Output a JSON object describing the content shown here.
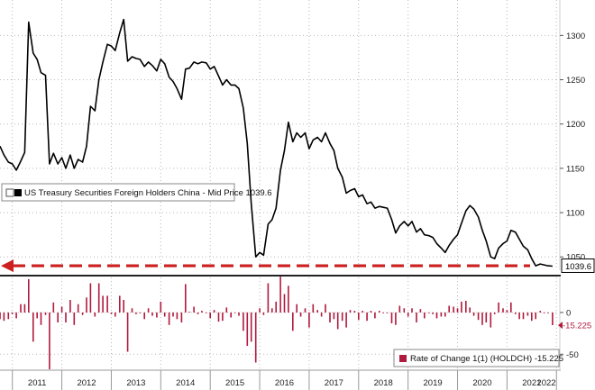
{
  "chart_data": [
    {
      "type": "line",
      "legend": "US Treasury Securities Foreign Holders China - Mid Price",
      "last_value_label": "1039.6",
      "ylim": [
        1035,
        1340
      ],
      "yticks": [
        "1050",
        "1100",
        "1150",
        "1200",
        "1250",
        "1300"
      ],
      "ytick_values": [
        1050,
        1100,
        1150,
        1200,
        1250,
        1300
      ],
      "grid": true,
      "legend_position": "middle-left",
      "line_color": "#000000",
      "reference_line": {
        "y": 1040,
        "style": "dashed-arrow",
        "color": "#cc1f1f"
      },
      "series": [
        {
          "x": [
            2010.75,
            2010.83,
            2010.92,
            2011.0,
            2011.08,
            2011.17,
            2011.25,
            2011.33,
            2011.42,
            2011.5,
            2011.58,
            2011.67,
            2011.75,
            2011.83,
            2011.92,
            2012.0,
            2012.08,
            2012.17,
            2012.25,
            2012.33,
            2012.42,
            2012.5,
            2012.58,
            2012.67,
            2012.75,
            2012.83,
            2012.92,
            2013.0,
            2013.08,
            2013.17,
            2013.25,
            2013.33,
            2013.42,
            2013.5,
            2013.58,
            2013.67,
            2013.75,
            2013.83,
            2013.92,
            2014.0,
            2014.08,
            2014.17,
            2014.25,
            2014.33,
            2014.42,
            2014.5,
            2014.58,
            2014.67,
            2014.75,
            2014.83,
            2014.92,
            2015.0,
            2015.08,
            2015.17,
            2015.25,
            2015.33,
            2015.42,
            2015.5,
            2015.58,
            2015.67,
            2015.75,
            2015.83,
            2015.92,
            2016.0,
            2016.08,
            2016.17,
            2016.25,
            2016.33,
            2016.42,
            2016.5,
            2016.58,
            2016.67,
            2016.75,
            2016.83,
            2016.92,
            2017.0,
            2017.08,
            2017.17,
            2017.25,
            2017.33,
            2017.42,
            2017.5,
            2017.58,
            2017.67,
            2017.75,
            2017.83,
            2017.92,
            2018.0,
            2018.08,
            2018.17,
            2018.25,
            2018.33,
            2018.42,
            2018.5,
            2018.58,
            2018.67,
            2018.75,
            2018.83,
            2018.92,
            2019.0,
            2019.08,
            2019.17,
            2019.25,
            2019.33,
            2019.42,
            2019.5,
            2019.58,
            2019.67,
            2019.75,
            2019.83,
            2019.92,
            2020.0,
            2020.08,
            2020.17,
            2020.25,
            2020.33,
            2020.42,
            2020.5,
            2020.58,
            2020.67,
            2020.75,
            2020.83,
            2020.92,
            2021.0,
            2021.08,
            2021.17,
            2021.25,
            2021.33,
            2021.42,
            2021.5,
            2021.58,
            2021.67,
            2021.75,
            2021.83,
            2021.92
          ],
          "y": [
            1175,
            1165,
            1157,
            1155,
            1148,
            1158,
            1168,
            1315,
            1280,
            1273,
            1258,
            1255,
            1155,
            1167,
            1155,
            1162,
            1150,
            1165,
            1150,
            1160,
            1157,
            1175,
            1220,
            1215,
            1250,
            1270,
            1290,
            1288,
            1283,
            1303,
            1318,
            1271,
            1276,
            1274,
            1273,
            1265,
            1270,
            1266,
            1260,
            1273,
            1268,
            1253,
            1248,
            1240,
            1228,
            1262,
            1263,
            1270,
            1268,
            1270,
            1269,
            1262,
            1265,
            1254,
            1244,
            1250,
            1244,
            1244,
            1240,
            1218,
            1178,
            1110,
            1050,
            1055,
            1052,
            1087,
            1092,
            1105,
            1148,
            1170,
            1202,
            1180,
            1190,
            1185,
            1190,
            1172,
            1182,
            1185,
            1180,
            1190,
            1178,
            1170,
            1150,
            1140,
            1122,
            1125,
            1127,
            1118,
            1120,
            1110,
            1112,
            1105,
            1107,
            1106,
            1105,
            1092,
            1077,
            1085,
            1090,
            1085,
            1090,
            1078,
            1082,
            1075,
            1074,
            1072,
            1065,
            1060,
            1055,
            1063,
            1070,
            1075,
            1088,
            1102,
            1108,
            1104,
            1095,
            1080,
            1068,
            1050,
            1048,
            1060,
            1065,
            1068,
            1080,
            1078,
            1070,
            1062,
            1058,
            1048,
            1040,
            1042,
            1041,
            1040,
            1039.6
          ]
        }
      ]
    },
    {
      "type": "bar",
      "legend": "Rate of Change 1(1) (HOLDCH)",
      "legend_value": "-15.225",
      "last_value_label": "-15.225",
      "ylim": [
        -68,
        42
      ],
      "yticks": [
        "-50",
        "0"
      ],
      "ytick_values": [
        -50,
        0
      ],
      "grid": true,
      "legend_position": "bottom-right",
      "bar_color": "#b01a3c",
      "x_labels": [
        "2011",
        "2012",
        "2013",
        "2014",
        "2015",
        "2016",
        "2017",
        "2018",
        "2019",
        "2020",
        "2021",
        "2022"
      ],
      "x_label_positions": [
        2011,
        2012,
        2013,
        2014,
        2015,
        2016,
        2017,
        2018,
        2019,
        2020,
        2021,
        2022
      ],
      "x": [
        2010.75,
        2010.83,
        2010.92,
        2011.0,
        2011.08,
        2011.17,
        2011.25,
        2011.33,
        2011.42,
        2011.5,
        2011.58,
        2011.67,
        2011.75,
        2011.83,
        2011.92,
        2012.0,
        2012.08,
        2012.17,
        2012.25,
        2012.33,
        2012.42,
        2012.5,
        2012.58,
        2012.67,
        2012.75,
        2012.83,
        2012.92,
        2013.0,
        2013.08,
        2013.17,
        2013.25,
        2013.33,
        2013.42,
        2013.5,
        2013.58,
        2013.67,
        2013.75,
        2013.83,
        2013.92,
        2014.0,
        2014.08,
        2014.17,
        2014.25,
        2014.33,
        2014.42,
        2014.5,
        2014.58,
        2014.67,
        2014.75,
        2014.83,
        2014.92,
        2015.0,
        2015.08,
        2015.17,
        2015.25,
        2015.33,
        2015.42,
        2015.5,
        2015.58,
        2015.67,
        2015.75,
        2015.83,
        2015.92,
        2016.0,
        2016.08,
        2016.17,
        2016.25,
        2016.33,
        2016.42,
        2016.5,
        2016.58,
        2016.67,
        2016.75,
        2016.83,
        2016.92,
        2017.0,
        2017.08,
        2017.17,
        2017.25,
        2017.33,
        2017.42,
        2017.5,
        2017.58,
        2017.67,
        2017.75,
        2017.83,
        2017.92,
        2018.0,
        2018.08,
        2018.17,
        2018.25,
        2018.33,
        2018.42,
        2018.5,
        2018.58,
        2018.67,
        2018.75,
        2018.83,
        2018.92,
        2019.0,
        2019.08,
        2019.17,
        2019.25,
        2019.33,
        2019.42,
        2019.5,
        2019.58,
        2019.67,
        2019.75,
        2019.83,
        2019.92,
        2020.0,
        2020.08,
        2020.17,
        2020.25,
        2020.33,
        2020.42,
        2020.5,
        2020.58,
        2020.67,
        2020.75,
        2020.83,
        2020.92,
        2021.0,
        2021.08,
        2021.17,
        2021.25,
        2021.33,
        2021.42,
        2021.5,
        2021.58,
        2021.67,
        2021.75,
        2021.83,
        2021.92
      ],
      "values": [
        -8,
        -10,
        -8,
        -2,
        -7,
        10,
        10,
        40,
        -35,
        -7,
        -15,
        -3,
        -68,
        12,
        -12,
        7,
        -12,
        15,
        -15,
        10,
        -3,
        18,
        35,
        -5,
        35,
        20,
        20,
        -2,
        -5,
        20,
        15,
        -47,
        5,
        -2,
        -1,
        -8,
        5,
        -4,
        -6,
        13,
        -5,
        -15,
        -5,
        -8,
        -12,
        34,
        1,
        7,
        -2,
        2,
        -1,
        -7,
        3,
        -11,
        -10,
        6,
        -6,
        0,
        -4,
        -22,
        -40,
        -35,
        -60,
        5,
        -3,
        35,
        5,
        13,
        43,
        22,
        32,
        -22,
        10,
        -5,
        5,
        -18,
        10,
        3,
        -5,
        10,
        -12,
        -8,
        -20,
        -10,
        -18,
        3,
        2,
        -9,
        2,
        -10,
        2,
        -7,
        2,
        -1,
        -1,
        -13,
        -15,
        8,
        5,
        -5,
        5,
        -12,
        4,
        -7,
        -1,
        -2,
        -7,
        -5,
        -5,
        8,
        7,
        5,
        13,
        14,
        6,
        -4,
        -9,
        -15,
        -12,
        -18,
        -2,
        12,
        5,
        3,
        12,
        -2,
        -8,
        -8,
        -4,
        -10,
        -8,
        2,
        -1,
        -1,
        -15.225
      ]
    }
  ]
}
